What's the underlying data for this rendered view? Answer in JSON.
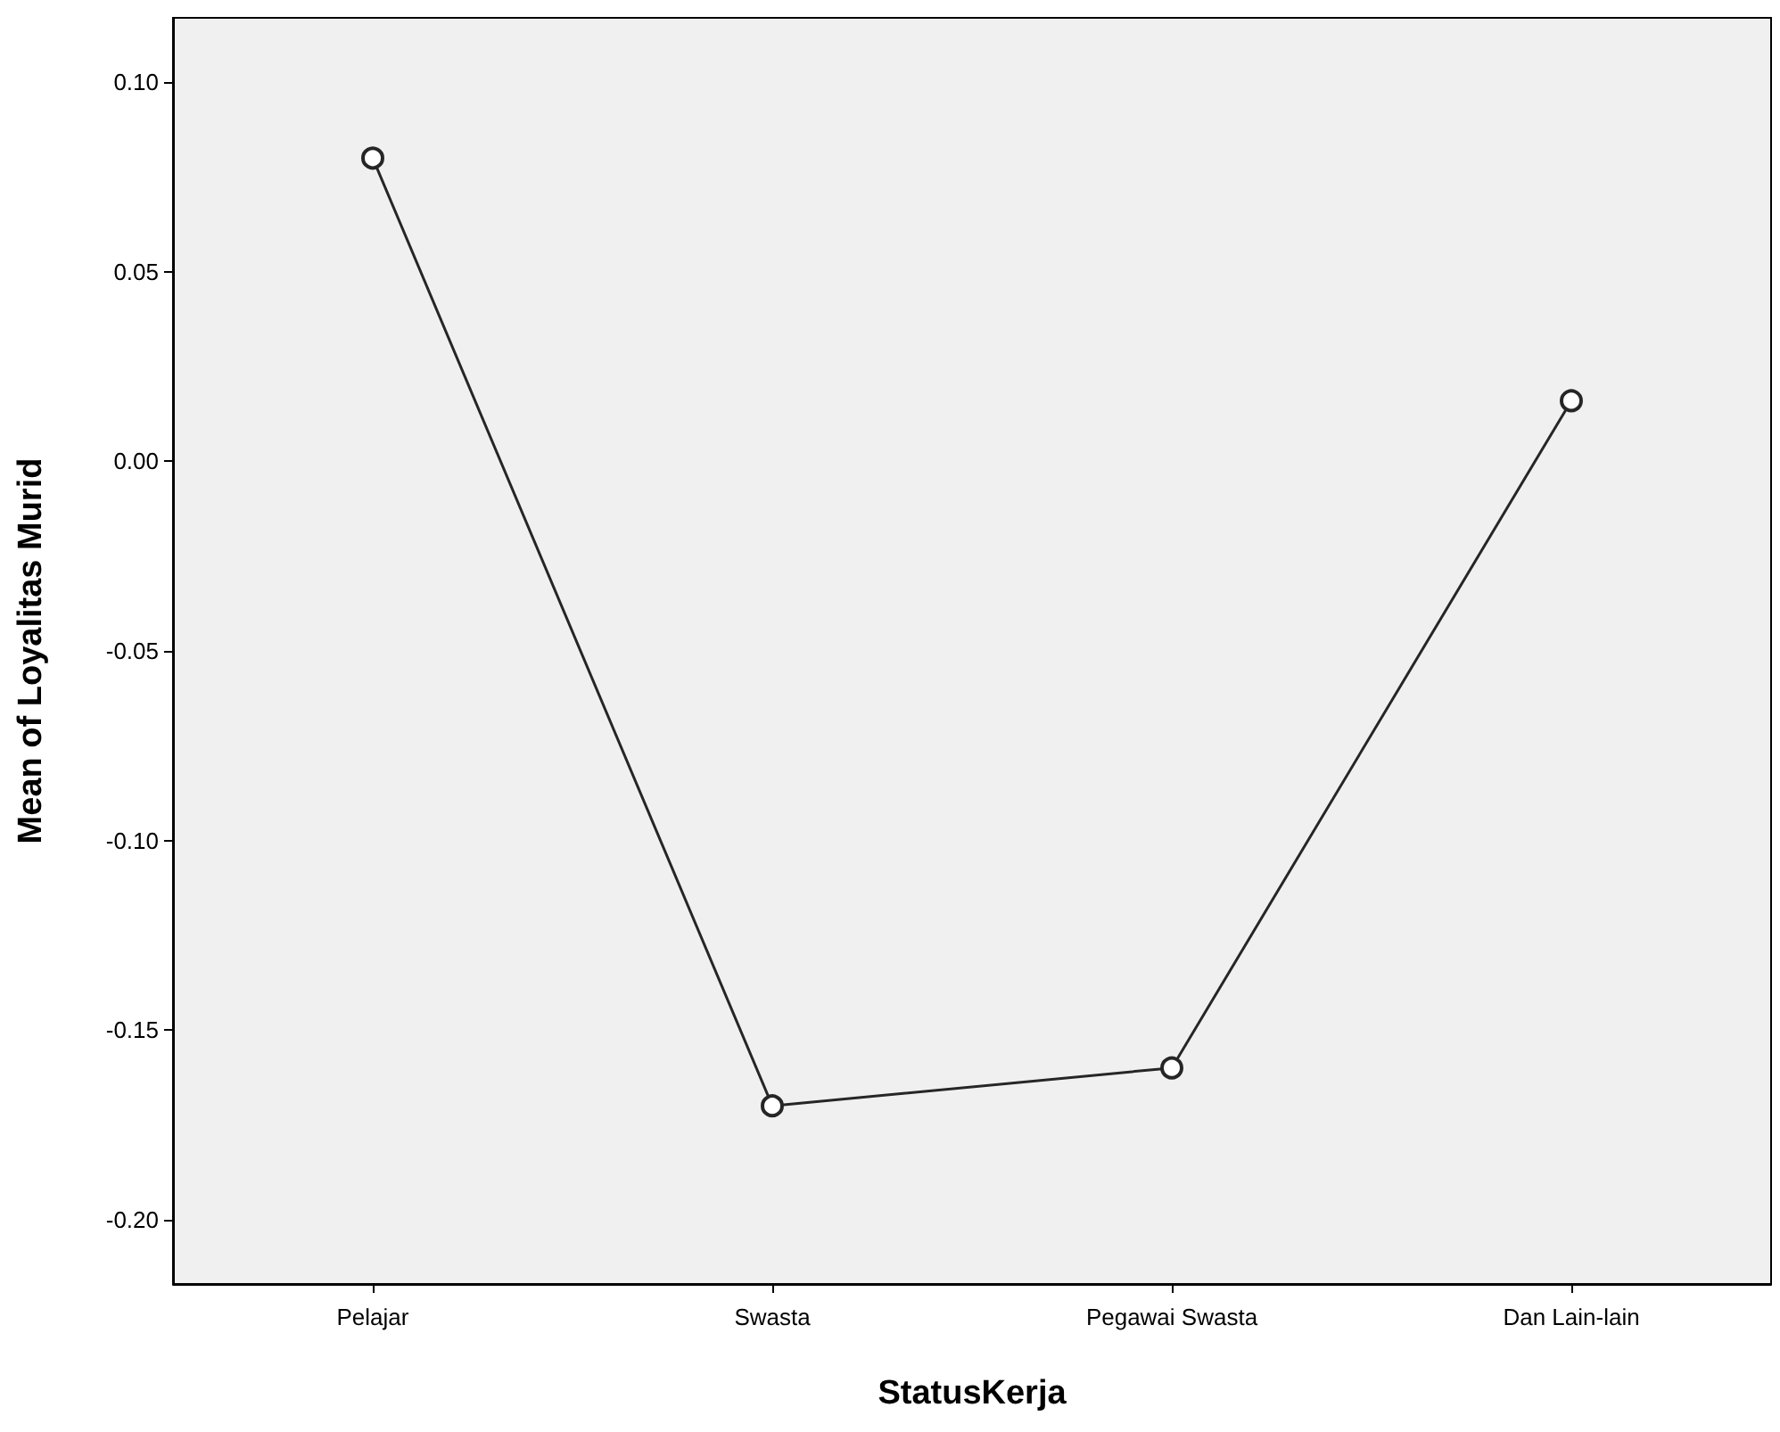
{
  "chart_data": {
    "type": "line",
    "xlabel": "StatusKerja",
    "ylabel": "Mean of Loyalitas Murid",
    "categories": [
      "Pelajar",
      "Swasta",
      "Pegawai Swasta",
      "Dan Lain-lain"
    ],
    "series": [
      {
        "color": "#262626",
        "values": [
          0.08,
          -0.17,
          -0.16,
          0.016
        ]
      }
    ],
    "ylim": [
      -0.217,
      0.117
    ],
    "yticks": [
      {
        "value": -0.2,
        "label": "-0.20"
      },
      {
        "value": -0.15,
        "label": "-0.15"
      },
      {
        "value": -0.1,
        "label": "-0.10"
      },
      {
        "value": -0.05,
        "label": "-0.05"
      },
      {
        "value": 0,
        "label": "0.00"
      },
      {
        "value": 0.05,
        "label": "0.05"
      },
      {
        "value": 0.1,
        "label": "0.10"
      }
    ],
    "grid": false,
    "marker": "circle",
    "line_style": "solid"
  }
}
